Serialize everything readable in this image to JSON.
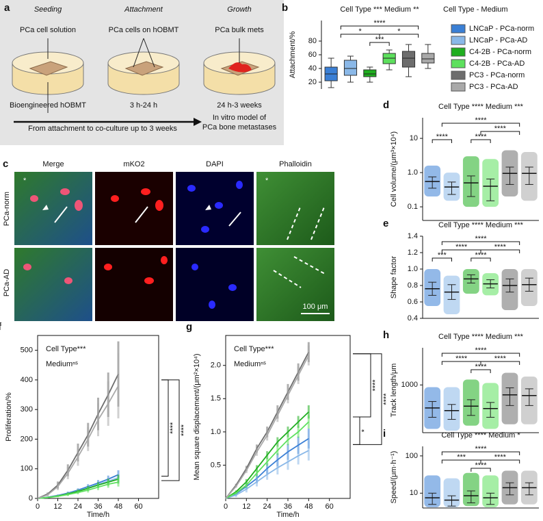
{
  "panel_a": {
    "label": "a",
    "steps": [
      {
        "title": "Seeding",
        "top": "PCa cell solution",
        "bottom": "Bioengineered hOBMT"
      },
      {
        "title": "Attachment",
        "top": "PCa cells on hOBMT",
        "bottom": "3 h-24 h"
      },
      {
        "title": "Growth",
        "top": "PCa bulk mets",
        "bottom": "24 h-3 weeks"
      }
    ],
    "timeline": "From attachment to co-culture up to 3 weeks",
    "outcome": [
      "In vitro model of",
      "PCa bone metastases"
    ]
  },
  "panel_c": {
    "label": "c",
    "columns": [
      "Merge",
      "mKO2",
      "DAPI",
      "Phalloidin"
    ],
    "rows": [
      "PCa-norm",
      "PCa-AD"
    ],
    "marker": "*",
    "scale_bar": "100 μm"
  },
  "chart_data": [
    {
      "type": "box",
      "label": "b",
      "title": "Cell Type ***  Medium **",
      "y_label": "Attachment/%",
      "legend_title": "Cell Type - Medium",
      "categories": [
        "LNCaP - PCa-norm",
        "LNCaP - PCa-AD",
        "C4-2B - PCa-norm",
        "C4-2B - PCa-AD",
        "PC3 - PCa-norm",
        "PC3 - PCa-AD"
      ],
      "colors": [
        "#3a7fd5",
        "#8ab8e8",
        "#1fae1f",
        "#5de05d",
        "#6d6d6d",
        "#a9a9a9"
      ],
      "min": [
        12,
        20,
        20,
        38,
        28,
        40
      ],
      "q1": [
        22,
        30,
        28,
        47,
        42,
        48
      ],
      "median": [
        32,
        40,
        32,
        55,
        55,
        54
      ],
      "q3": [
        42,
        52,
        38,
        62,
        65,
        62
      ],
      "max": [
        55,
        58,
        42,
        67,
        75,
        75
      ],
      "ylim": [
        10,
        110
      ],
      "yticks": [
        20,
        40,
        60,
        80
      ],
      "annotations": [
        {
          "text": "***",
          "from": [
            2
          ],
          "to": [
            3
          ]
        },
        {
          "text": "*",
          "from": [
            0,
            1
          ],
          "to": [
            2,
            3
          ]
        },
        {
          "text": "*",
          "from": [
            2,
            3
          ],
          "to": [
            4,
            5
          ]
        },
        {
          "text": "****",
          "from": [
            0,
            1
          ],
          "to": [
            4,
            5
          ]
        }
      ]
    },
    {
      "type": "dot",
      "label": "d",
      "title": "Cell Type ****  Medium ***",
      "y_label": "Cell volume/(μm³×10⁴)",
      "log": true,
      "colors": [
        "#3a7fd5",
        "#8ab8e8",
        "#1fae1f",
        "#5de05d",
        "#6d6d6d",
        "#a9a9a9"
      ],
      "means": [
        0.55,
        0.38,
        0.5,
        0.4,
        0.95,
        0.95
      ],
      "sd": [
        0.2,
        0.15,
        0.3,
        0.25,
        0.5,
        0.5
      ],
      "min": [
        0.2,
        0.15,
        0.1,
        0.1,
        0.2,
        0.15
      ],
      "max": [
        1.6,
        1.0,
        3,
        2.5,
        4.5,
        4
      ],
      "ylim": [
        0.04,
        40
      ],
      "yticks": [
        0.1,
        {
          "value": 1,
          "label": "1.0"
        },
        10
      ],
      "annotations": [
        {
          "text": "****",
          "from": [
            0
          ],
          "to": [
            1
          ]
        },
        {
          "text": "****",
          "from": [
            2
          ],
          "to": [
            3
          ]
        },
        {
          "text": "****",
          "from": [
            2,
            3
          ],
          "to": [
            4,
            5
          ]
        },
        {
          "text": "****",
          "from": [
            0,
            1
          ],
          "to": [
            4,
            5
          ]
        }
      ]
    },
    {
      "type": "dot",
      "label": "e",
      "title": "Cell Type ****  Medium ***",
      "y_label": "Shape factor",
      "log": false,
      "colors": [
        "#3a7fd5",
        "#8ab8e8",
        "#1fae1f",
        "#5de05d",
        "#6d6d6d",
        "#a9a9a9"
      ],
      "means": [
        0.76,
        0.72,
        0.88,
        0.82,
        0.8,
        0.81
      ],
      "sd": [
        0.08,
        0.09,
        0.05,
        0.05,
        0.08,
        0.08
      ],
      "min": [
        0.55,
        0.45,
        0.7,
        0.68,
        0.5,
        0.55
      ],
      "max": [
        1.0,
        0.92,
        1.0,
        0.95,
        1.0,
        1.0
      ],
      "ylim": [
        0.4,
        1.4
      ],
      "yticks": [
        0.4,
        0.6,
        0.8,
        {
          "value": 1,
          "label": "1.0"
        },
        1.2,
        1.4
      ],
      "annotations": [
        {
          "text": "***",
          "from": [
            0
          ],
          "to": [
            1
          ]
        },
        {
          "text": "****",
          "from": [
            2
          ],
          "to": [
            3
          ]
        },
        {
          "text": "****",
          "from": [
            0,
            1
          ],
          "to": [
            2,
            3
          ]
        },
        {
          "text": "****",
          "from": [
            2,
            3
          ],
          "to": [
            4,
            5
          ]
        },
        {
          "text": "****",
          "from": [
            0,
            1
          ],
          "to": [
            4,
            5
          ]
        }
      ]
    },
    {
      "type": "line",
      "label": "f",
      "notes": [
        "Cell Type***",
        "Mediumⁿˢ"
      ],
      "y_label": "Proliferation/%",
      "x_label": "Time/h",
      "x": [
        0,
        6,
        12,
        18,
        24,
        30,
        36,
        42,
        48
      ],
      "xlim": [
        0,
        72
      ],
      "xticks": [
        0,
        12,
        24,
        36,
        48,
        60
      ],
      "ylim": [
        0,
        550
      ],
      "yticks": [
        0,
        100,
        200,
        300,
        400,
        500
      ],
      "series": [
        {
          "color": "#3a7fd5",
          "values": [
            0,
            4,
            10,
            18,
            28,
            40,
            52,
            65,
            80
          ],
          "errors": [
            0,
            2,
            3,
            5,
            6,
            8,
            10,
            12,
            15
          ]
        },
        {
          "color": "#8ab8e8",
          "values": [
            0,
            3,
            9,
            16,
            25,
            35,
            47,
            58,
            70
          ],
          "errors": [
            0,
            2,
            3,
            5,
            6,
            8,
            10,
            12,
            15
          ]
        },
        {
          "color": "#1fae1f",
          "values": [
            0,
            3,
            8,
            15,
            24,
            34,
            45,
            55,
            65
          ],
          "errors": [
            0,
            2,
            3,
            5,
            6,
            8,
            10,
            12,
            15
          ]
        },
        {
          "color": "#5de05d",
          "values": [
            0,
            3,
            7,
            13,
            20,
            28,
            38,
            48,
            55
          ],
          "errors": [
            0,
            2,
            3,
            5,
            6,
            8,
            10,
            12,
            15
          ]
        },
        {
          "color": "#6d6d6d",
          "values": [
            0,
            15,
            45,
            95,
            155,
            215,
            285,
            350,
            420
          ],
          "errors": [
            0,
            5,
            12,
            20,
            30,
            40,
            55,
            75,
            110
          ]
        },
        {
          "color": "#a9a9a9",
          "values": [
            0,
            12,
            40,
            85,
            140,
            200,
            265,
            320,
            380
          ],
          "errors": [
            0,
            5,
            12,
            20,
            30,
            40,
            55,
            75,
            110
          ]
        }
      ],
      "annotations": [
        {
          "text": "****",
          "from": [
            4,
            5
          ],
          "to": [
            0,
            1
          ]
        },
        {
          "text": "****",
          "from": [
            4,
            5
          ],
          "to": [
            2,
            3
          ]
        }
      ]
    },
    {
      "type": "line",
      "label": "g",
      "notes": [
        "Cell Type***",
        "Mediumⁿˢ"
      ],
      "y_label": "Mean square displacement/(μm²×10⁴)",
      "x_label": "Time/h",
      "x": [
        0,
        6,
        12,
        18,
        24,
        30,
        36,
        42,
        48
      ],
      "xlim": [
        0,
        72
      ],
      "xticks": [
        0,
        12,
        24,
        36,
        48,
        60
      ],
      "ylim": [
        0,
        2.45
      ],
      "yticks": [
        0.5,
        {
          "value": 1,
          "label": "1.0"
        },
        1.5,
        {
          "value": 2,
          "label": "2.0"
        }
      ],
      "series": [
        {
          "color": "#3a7fd5",
          "values": [
            0,
            0.07,
            0.18,
            0.3,
            0.45,
            0.58,
            0.7,
            0.8,
            0.9
          ],
          "errors": [
            0,
            0.03,
            0.05,
            0.07,
            0.08,
            0.1,
            0.12,
            0.13,
            0.15
          ]
        },
        {
          "color": "#8ab8e8",
          "values": [
            0,
            0.05,
            0.14,
            0.25,
            0.36,
            0.46,
            0.55,
            0.64,
            0.72
          ],
          "errors": [
            0,
            0.03,
            0.05,
            0.07,
            0.08,
            0.1,
            0.12,
            0.13,
            0.15
          ]
        },
        {
          "color": "#1fae1f",
          "values": [
            0,
            0.1,
            0.25,
            0.45,
            0.65,
            0.85,
            1.0,
            1.15,
            1.3
          ],
          "errors": [
            0,
            0.02,
            0.04,
            0.05,
            0.06,
            0.07,
            0.08,
            0.09,
            0.1
          ]
        },
        {
          "color": "#5de05d",
          "values": [
            0,
            0.08,
            0.2,
            0.38,
            0.55,
            0.72,
            0.88,
            1.0,
            1.15
          ],
          "errors": [
            0,
            0.02,
            0.04,
            0.05,
            0.06,
            0.07,
            0.08,
            0.09,
            0.1
          ]
        },
        {
          "color": "#6d6d6d",
          "values": [
            0,
            0.2,
            0.45,
            0.75,
            1.0,
            1.3,
            1.6,
            1.9,
            2.2
          ],
          "errors": [
            0,
            0.02,
            0.04,
            0.06,
            0.08,
            0.1,
            0.12,
            0.13,
            0.15
          ]
        },
        {
          "color": "#a9a9a9",
          "values": [
            0,
            0.18,
            0.42,
            0.7,
            0.95,
            1.25,
            1.55,
            1.85,
            2.15
          ],
          "errors": [
            0,
            0.02,
            0.04,
            0.06,
            0.08,
            0.1,
            0.12,
            0.13,
            0.15
          ]
        }
      ],
      "annotations": [
        {
          "text": "*",
          "from": [
            2,
            3
          ],
          "to": [
            0,
            1
          ]
        },
        {
          "text": "****",
          "from": [
            4,
            5
          ],
          "to": [
            2,
            3
          ]
        },
        {
          "text": "****",
          "from": [
            4,
            5
          ],
          "to": [
            0,
            1
          ]
        }
      ]
    },
    {
      "type": "dot",
      "label": "h",
      "title": "Cell Type ****  Medium ***",
      "y_label": "Track length/μm",
      "log": true,
      "colors": [
        "#3a7fd5",
        "#8ab8e8",
        "#1fae1f",
        "#5de05d",
        "#6d6d6d",
        "#a9a9a9"
      ],
      "means": [
        330,
        290,
        360,
        320,
        620,
        600
      ],
      "sd": [
        120,
        100,
        130,
        110,
        250,
        230
      ],
      "min": [
        120,
        110,
        140,
        120,
        150,
        150
      ],
      "max": [
        900,
        900,
        1300,
        1100,
        1800,
        1500
      ],
      "ylim": [
        100,
        6000
      ],
      "yticks": [
        1000
      ],
      "annotations": [
        {
          "text": "****",
          "from": [
            2
          ],
          "to": [
            3
          ]
        },
        {
          "text": "****",
          "from": [
            0,
            1
          ],
          "to": [
            2,
            3
          ]
        },
        {
          "text": "****",
          "from": [
            2,
            3
          ],
          "to": [
            4,
            5
          ]
        },
        {
          "text": "****",
          "from": [
            0,
            1
          ],
          "to": [
            4,
            5
          ]
        }
      ]
    },
    {
      "type": "dot",
      "label": "i",
      "title": "Cell Type ****  Medium *",
      "y_label": "Speed/(μm·h⁻¹)",
      "log": true,
      "colors": [
        "#3a7fd5",
        "#8ab8e8",
        "#1fae1f",
        "#5de05d",
        "#6d6d6d",
        "#a9a9a9"
      ],
      "means": [
        7.5,
        6.5,
        8.5,
        7.5,
        14,
        14
      ],
      "sd": [
        2.5,
        2,
        3,
        2.5,
        5,
        5
      ],
      "min": [
        4.2,
        4.2,
        4.5,
        4.2,
        5,
        5
      ],
      "max": [
        30,
        25,
        35,
        30,
        40,
        40
      ],
      "ylim": [
        4,
        180
      ],
      "yticks": [
        10,
        100
      ],
      "annotations": [
        {
          "text": "****",
          "from": [
            2
          ],
          "to": [
            3
          ]
        },
        {
          "text": "***",
          "from": [
            0,
            1
          ],
          "to": [
            2,
            3
          ]
        },
        {
          "text": "****",
          "from": [
            2,
            3
          ],
          "to": [
            4,
            5
          ]
        },
        {
          "text": "****",
          "from": [
            0,
            1
          ],
          "to": [
            4,
            5
          ]
        }
      ]
    }
  ]
}
